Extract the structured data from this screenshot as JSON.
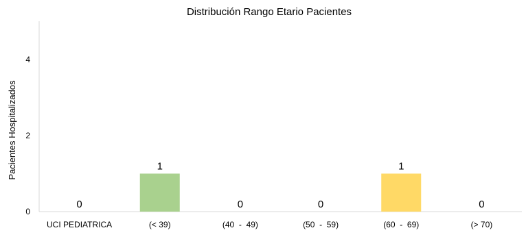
{
  "chart_data": {
    "type": "bar",
    "title": "Distribución Rango Etario Pacientes",
    "xlabel": "",
    "ylabel": "Pacientes Hospitalizados",
    "categories": [
      "UCI PEDIATRICA",
      "(< 39)",
      "(40  -  49)",
      "(50  -  59)",
      "(60  -  69)",
      "(> 70)"
    ],
    "values": [
      0,
      1,
      0,
      0,
      1,
      0
    ],
    "data_labels": [
      "0",
      "1",
      "0",
      "0",
      "1",
      "0"
    ],
    "bar_colors": [
      "#a9d18e",
      "#a9d18e",
      "#a9d18e",
      "#a9d18e",
      "#ffd966",
      "#a9d18e"
    ],
    "ylim": [
      0,
      5
    ],
    "yticks": [
      0,
      2,
      4
    ],
    "grid": false,
    "legend": "none"
  }
}
